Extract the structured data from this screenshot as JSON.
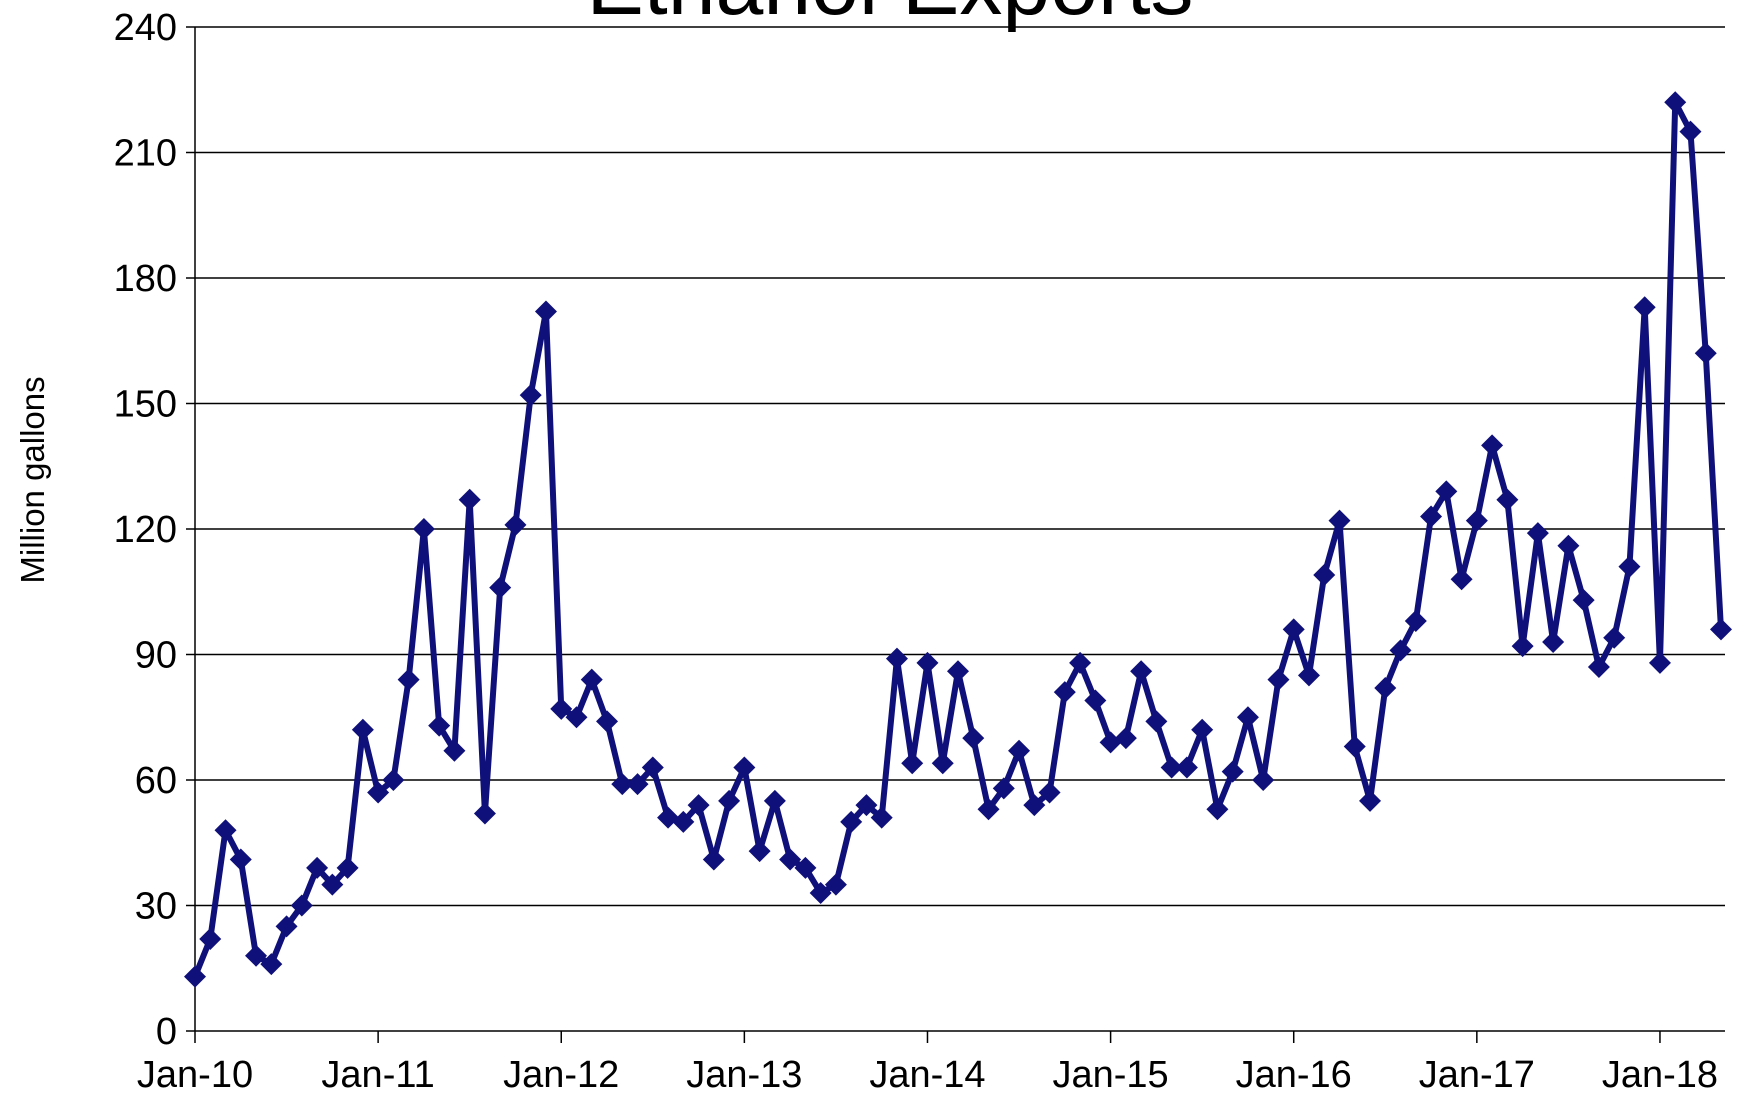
{
  "chart_data": {
    "type": "line",
    "title": "Ethanol Exports",
    "y_label": "Million gallons",
    "categories": [
      "Jan-10",
      null,
      null,
      null,
      null,
      null,
      null,
      null,
      null,
      null,
      null,
      null,
      "Jan-11",
      null,
      null,
      null,
      null,
      null,
      null,
      null,
      null,
      null,
      null,
      null,
      "Jan-12",
      null,
      null,
      null,
      null,
      null,
      null,
      null,
      null,
      null,
      null,
      null,
      "Jan-13",
      null,
      null,
      null,
      null,
      null,
      null,
      null,
      null,
      null,
      null,
      null,
      "Jan-14",
      null,
      null,
      null,
      null,
      null,
      null,
      null,
      null,
      null,
      null,
      null,
      "Jan-15",
      null,
      null,
      null,
      null,
      null,
      null,
      null,
      null,
      null,
      null,
      null,
      "Jan-16",
      null,
      null,
      null,
      null,
      null,
      null,
      null,
      null,
      null,
      null,
      null,
      "Jan-17",
      null,
      null,
      null,
      null,
      null,
      null,
      null,
      null,
      null,
      null,
      null,
      "Jan-18",
      null,
      null,
      null,
      null
    ],
    "series": [
      {
        "name": "Ethanol Exports",
        "color": "#10107a",
        "values": [
          13,
          22,
          48,
          41,
          18,
          16,
          25,
          30,
          39,
          35,
          39,
          72,
          57,
          60,
          84,
          120,
          73,
          67,
          127,
          52,
          106,
          121,
          152,
          172,
          77,
          75,
          84,
          74,
          59,
          59,
          63,
          51,
          50,
          54,
          41,
          55,
          63,
          43,
          55,
          41,
          39,
          33,
          35,
          50,
          54,
          51,
          89,
          64,
          88,
          64,
          86,
          70,
          53,
          58,
          67,
          54,
          57,
          81,
          88,
          79,
          69,
          70,
          86,
          74,
          63,
          63,
          72,
          53,
          62,
          75,
          60,
          84,
          96,
          85,
          109,
          122,
          68,
          55,
          82,
          91,
          98,
          123,
          129,
          108,
          122,
          140,
          127,
          92,
          119,
          93,
          116,
          103,
          87,
          94,
          111,
          173,
          88,
          222,
          215,
          162,
          96
        ]
      }
    ],
    "ylim": [
      0,
      240
    ],
    "yticks": [
      0,
      30,
      60,
      90,
      120,
      150,
      180,
      210,
      240
    ],
    "grid": true
  }
}
